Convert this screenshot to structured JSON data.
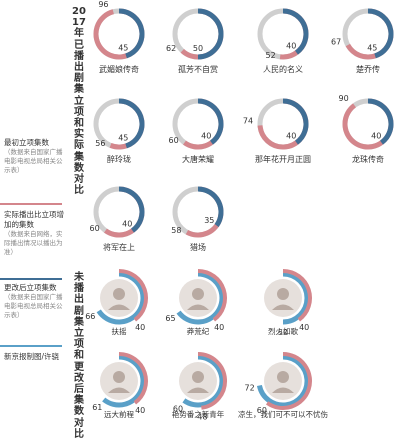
{
  "legend": {
    "items": [
      {
        "title": "最初立项集数",
        "note": "（数据来自国家广播电影电视总局相关公示表）",
        "color": "#d4868c"
      },
      {
        "title": "实际播出比立项增加的集数",
        "note": "（数据来自网络，实际播出情况以播出为准）",
        "color": "#3f6e95"
      },
      {
        "title": "更改后立项集数",
        "note": "（数据来自国家广播电影电视总局相关公示表）",
        "color": "#5aa0c8"
      }
    ],
    "source": "新京报制图/许骁"
  },
  "titles": {
    "top": "2017年已播出剧集立项和实际集数对比",
    "bottom": "未播出剧集立项和更改后集数对比"
  },
  "colors": {
    "planned": "#d4868c",
    "added": "#3f6e95",
    "changed": "#5aa0c8",
    "track": "#cfcfcf"
  },
  "chart_data": [
    {
      "type": "donut",
      "title": "2017年已播出剧集立项和实际集数对比",
      "items": [
        {
          "name": "武媚娘传奇",
          "planned": 45,
          "actual": 96
        },
        {
          "name": "孤芳不自赏",
          "planned": 50,
          "actual": 62
        },
        {
          "name": "人民的名义",
          "planned": 40,
          "actual": 52
        },
        {
          "name": "楚乔传",
          "planned": 45,
          "actual": 67
        },
        {
          "name": "醉玲珑",
          "planned": 45,
          "actual": 56
        },
        {
          "name": "大唐荣耀",
          "planned": 40,
          "actual": 60
        },
        {
          "name": "那年花开月正圆",
          "planned": 40,
          "actual": 74
        },
        {
          "name": "龙珠传奇",
          "planned": 40,
          "actual": 90
        },
        {
          "name": "将军在上",
          "planned": 40,
          "actual": 60
        },
        {
          "name": "猎场",
          "planned": 35,
          "actual": 58
        }
      ]
    },
    {
      "type": "donut",
      "title": "未播出剧集立项和更改后集数对比",
      "items": [
        {
          "name": "扶摇",
          "planned": 40,
          "changed": 66
        },
        {
          "name": "莽荒纪",
          "planned": 40,
          "changed": 65
        },
        {
          "name": "烈火如歌",
          "planned": 40,
          "changed": 50
        },
        {
          "name": "远大前程",
          "planned": 40,
          "changed": 61
        },
        {
          "name": "艳势番之新青年",
          "planned": 48,
          "changed": 60
        },
        {
          "name": "凉生，我们可不可以不忧伤",
          "planned": 60,
          "changed": 72
        }
      ]
    }
  ]
}
